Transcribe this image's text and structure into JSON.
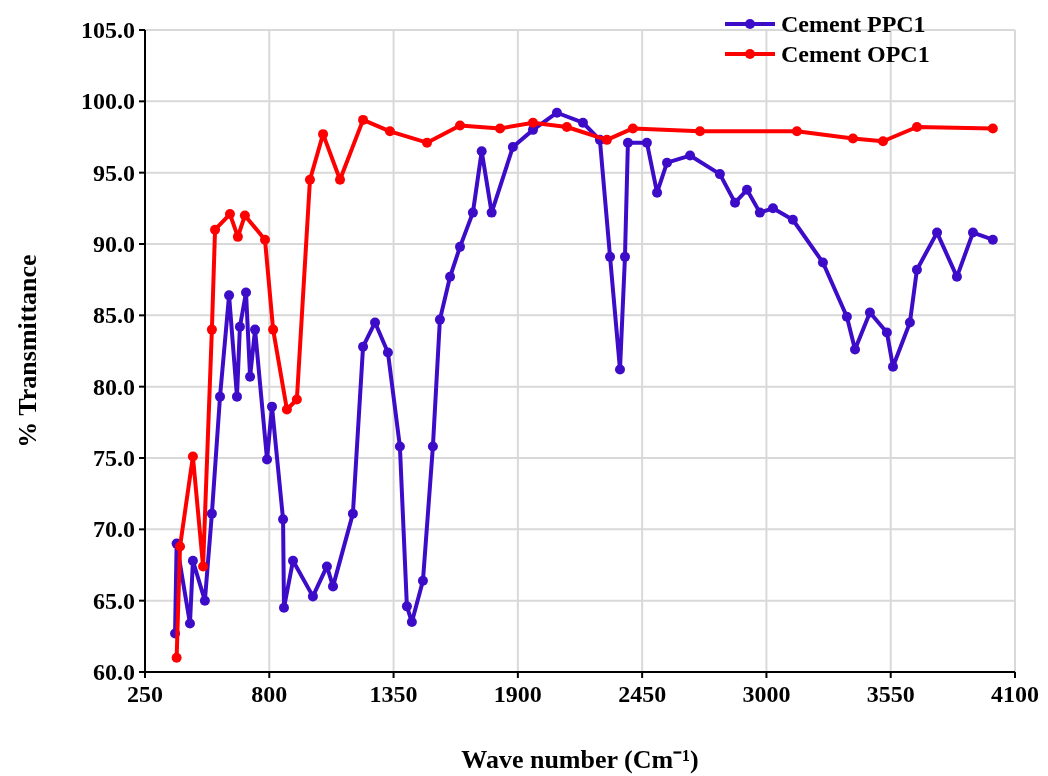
{
  "chart_data": {
    "type": "line",
    "xlabel": "Wave number (Cm⁻¹)",
    "ylabel": "% Transmittance",
    "xlim": [
      250,
      4100
    ],
    "xticks": [
      250,
      800,
      1350,
      1900,
      2450,
      3000,
      3550,
      4100
    ],
    "ylim": [
      60,
      105
    ],
    "yticks": [
      {
        "value": 60,
        "label": "60.0"
      },
      {
        "value": 65,
        "label": "65.0"
      },
      {
        "value": 70,
        "label": "70.0"
      },
      {
        "value": 75,
        "label": "75.0"
      },
      {
        "value": 80,
        "label": "80.0"
      },
      {
        "value": 85,
        "label": "85.0"
      },
      {
        "value": 90,
        "label": "90.0"
      },
      {
        "value": 95,
        "label": "95.0"
      },
      {
        "value": 100,
        "label": "100.0"
      },
      {
        "value": 105,
        "label": "105.0"
      }
    ],
    "grid": true,
    "legend": "top right",
    "marker": "circle",
    "line_style": "solid",
    "series": [
      {
        "name": "Cement PPC1",
        "color": "#3d0cc8",
        "x": [
          383,
          390,
          449,
          462,
          515,
          546,
          582,
          622,
          657,
          670,
          697,
          715,
          737,
          790,
          812,
          861,
          865,
          905,
          993,
          1055,
          1082,
          1170,
          1215,
          1268,
          1325,
          1378,
          1409,
          1431,
          1480,
          1524,
          1555,
          1600,
          1644,
          1701,
          1740,
          1784,
          1878,
          1967,
          2073,
          2188,
          2263,
          2308,
          2352,
          2374,
          2387,
          2471,
          2516,
          2560,
          2662,
          2794,
          2861,
          2914,
          2971,
          3029,
          3117,
          3250,
          3356,
          3392,
          3458,
          3533,
          3560,
          3635,
          3666,
          3755,
          3843,
          3914,
          4002
        ],
        "values": [
          62.7,
          69.0,
          63.4,
          67.8,
          65.0,
          71.1,
          79.3,
          86.4,
          79.3,
          84.2,
          86.6,
          80.7,
          84.0,
          74.9,
          78.6,
          70.7,
          64.5,
          67.8,
          65.3,
          67.4,
          66.0,
          71.1,
          82.8,
          84.5,
          82.4,
          75.8,
          64.6,
          63.5,
          66.4,
          75.8,
          84.7,
          87.7,
          89.8,
          92.2,
          96.5,
          92.2,
          96.8,
          98.0,
          99.2,
          98.5,
          97.3,
          89.1,
          81.2,
          89.1,
          97.1,
          97.1,
          93.6,
          95.7,
          96.2,
          94.9,
          92.9,
          93.8,
          92.2,
          92.5,
          91.7,
          88.7,
          84.9,
          82.6,
          85.2,
          83.8,
          81.4,
          84.5,
          88.2,
          90.8,
          87.7,
          90.8,
          90.3
        ]
      },
      {
        "name": "Cement OPC1",
        "color": "#ff0000",
        "x": [
          390,
          405,
          462,
          507,
          546,
          560,
          626,
          661,
          692,
          781,
          817,
          878,
          922,
          980,
          1038,
          1113,
          1215,
          1334,
          1498,
          1644,
          1821,
          1967,
          2117,
          2294,
          2409,
          2706,
          3135,
          3383,
          3516,
          3666,
          4002
        ],
        "values": [
          61.0,
          68.8,
          75.1,
          67.4,
          84.0,
          91.0,
          92.1,
          90.5,
          92.0,
          90.3,
          84.0,
          78.4,
          79.1,
          94.5,
          97.7,
          94.5,
          98.7,
          97.9,
          97.1,
          98.3,
          98.1,
          98.5,
          98.2,
          97.3,
          98.1,
          97.9,
          97.9,
          97.4,
          97.2,
          98.2,
          98.1
        ]
      }
    ]
  }
}
